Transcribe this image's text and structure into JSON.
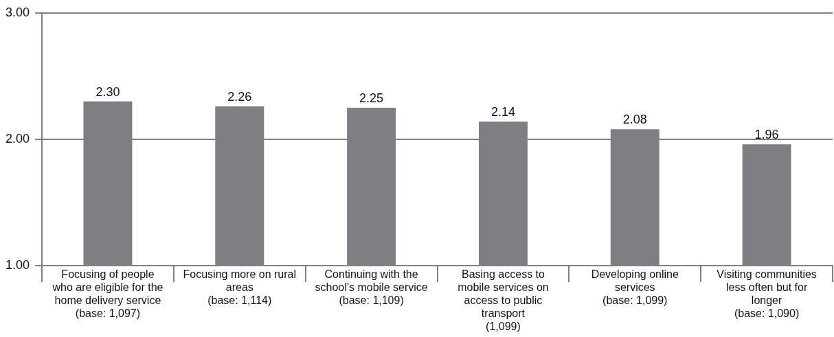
{
  "chart_data": {
    "type": "bar",
    "categories": [
      "Focusing of people who are eligible for the home delivery service (base: 1,097)",
      "Focusing more on rural areas (base: 1,114)",
      "Continuing with the school’s mobile service (base: 1,109)",
      "Basing access to mobile services on access to public transport (1,099)",
      "Developing online services (base: 1,099)",
      "Visiting communities less often but for longer (base: 1,090)"
    ],
    "values": [
      2.3,
      2.26,
      2.25,
      2.14,
      2.08,
      1.96
    ],
    "color": "#7f7e83",
    "ylim": [
      1,
      3
    ],
    "yticks": [
      {
        "value": 1,
        "label": "1.00"
      },
      {
        "value": 2,
        "label": "2.00"
      },
      {
        "value": 3,
        "label": "3.00"
      }
    ],
    "grid": "y",
    "data_labels": true,
    "value_labels": [
      "2.30",
      "2.26",
      "2.25",
      "2.14",
      "2.08",
      "1.96"
    ]
  }
}
